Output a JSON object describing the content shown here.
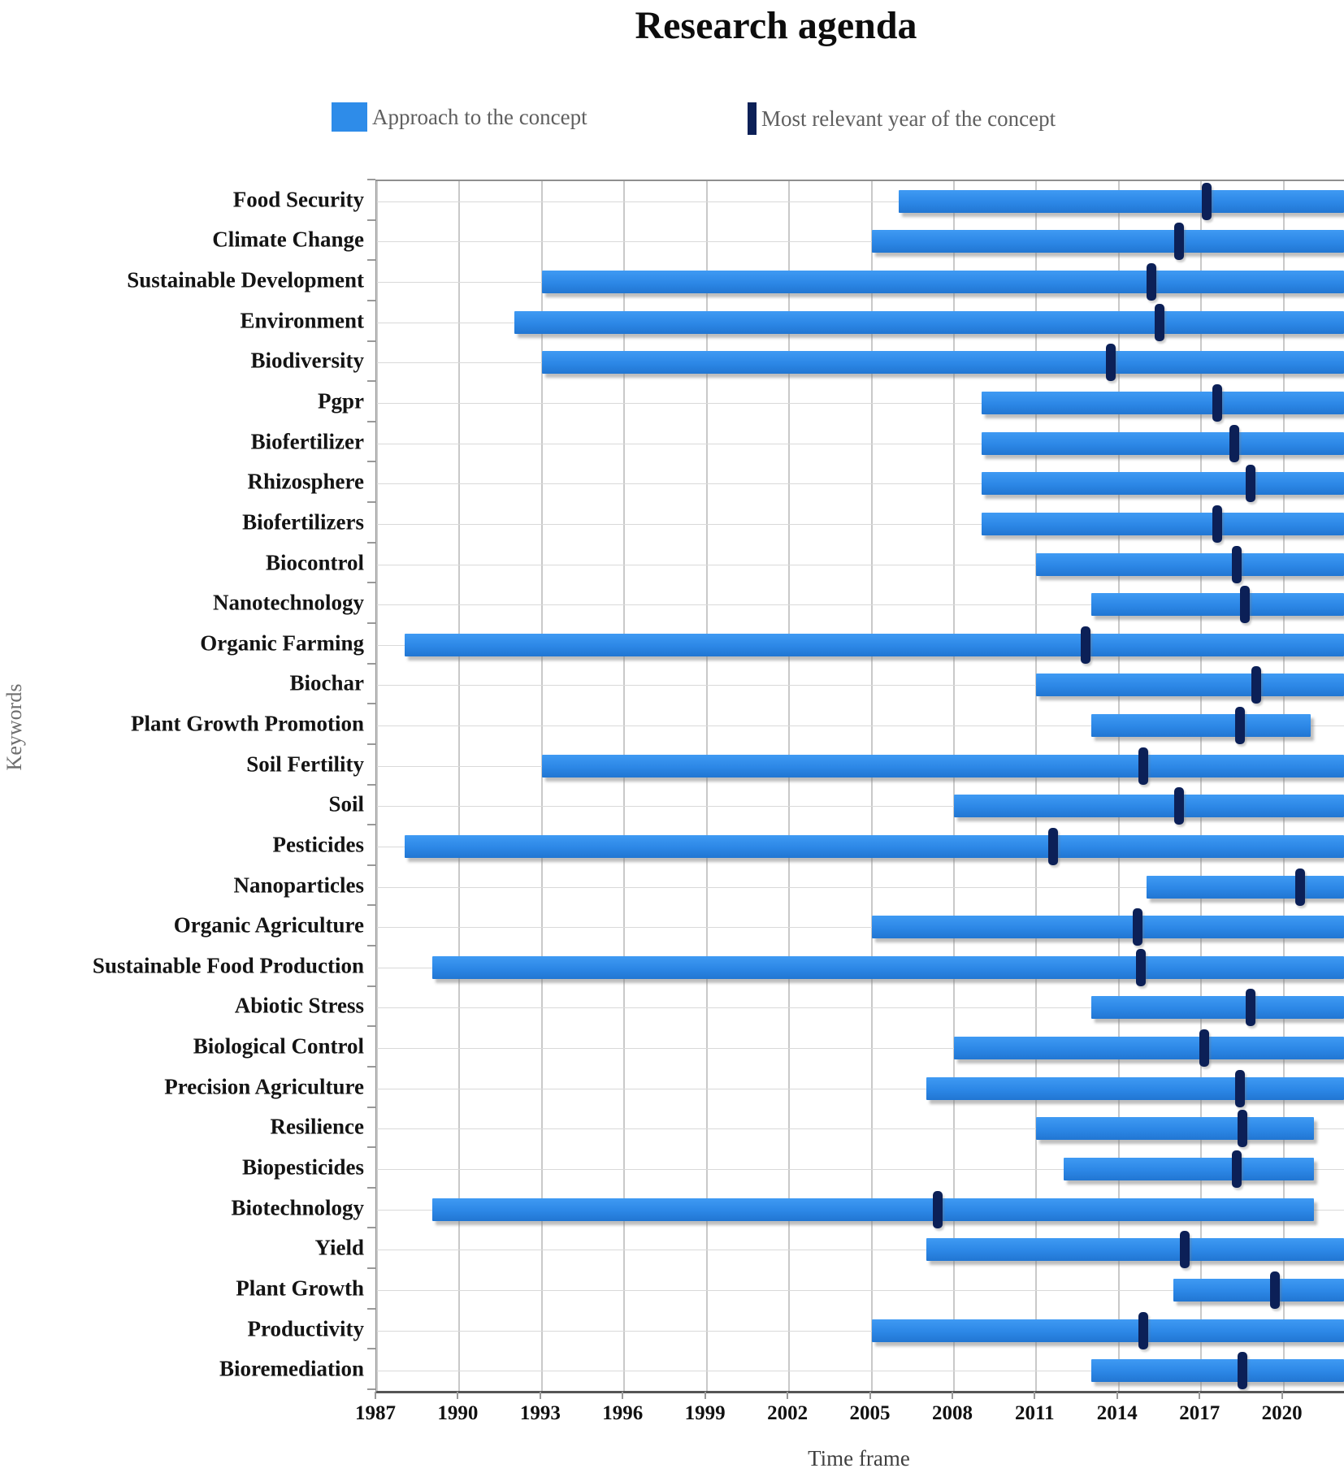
{
  "title": "Research agenda",
  "legend": {
    "approach_label": "Approach to the concept",
    "relevant_label": "Most relevant year of the concept"
  },
  "axes": {
    "y_title": "Keywords",
    "x_title": "Time frame"
  },
  "colors": {
    "bar": "#2e8ce9",
    "marker": "#0c2057",
    "legend_text": "#5f5f5f"
  },
  "chart_data": {
    "type": "bar",
    "orientation": "horizontal-gantt",
    "title": "Research agenda",
    "xlabel": "Time frame",
    "ylabel": "Keywords",
    "xlim": [
      1987,
      2022.2
    ],
    "x_ticks": [
      1987,
      1990,
      1993,
      1996,
      1999,
      2002,
      2005,
      2008,
      2011,
      2014,
      2017,
      2020
    ],
    "grid": true,
    "legend_position": "top",
    "series_meaning": {
      "bar": "Approach to the concept (time span)",
      "marker": "Most relevant year of the concept"
    },
    "rows": [
      {
        "label": "Food Security",
        "start": 2006,
        "end": 2022.2,
        "marker": 2017.2
      },
      {
        "label": "Climate Change",
        "start": 2005,
        "end": 2022.2,
        "marker": 2016.2
      },
      {
        "label": "Sustainable Development",
        "start": 1993,
        "end": 2022.2,
        "marker": 2015.2
      },
      {
        "label": "Environment",
        "start": 1992,
        "end": 2022.2,
        "marker": 2015.5
      },
      {
        "label": "Biodiversity",
        "start": 1993,
        "end": 2022.2,
        "marker": 2013.7
      },
      {
        "label": "Pgpr",
        "start": 2009,
        "end": 2022.2,
        "marker": 2017.6
      },
      {
        "label": "Biofertilizer",
        "start": 2009,
        "end": 2022.2,
        "marker": 2018.2
      },
      {
        "label": "Rhizosphere",
        "start": 2009,
        "end": 2022.2,
        "marker": 2018.8
      },
      {
        "label": "Biofertilizers",
        "start": 2009,
        "end": 2022.2,
        "marker": 2017.6
      },
      {
        "label": "Biocontrol",
        "start": 2011,
        "end": 2022.2,
        "marker": 2018.3
      },
      {
        "label": "Nanotechnology",
        "start": 2013,
        "end": 2022.2,
        "marker": 2018.6
      },
      {
        "label": "Organic Farming",
        "start": 1988,
        "end": 2022.2,
        "marker": 2012.8
      },
      {
        "label": "Biochar",
        "start": 2011,
        "end": 2022.2,
        "marker": 2019.0
      },
      {
        "label": "Plant Growth Promotion",
        "start": 2013,
        "end": 2021.0,
        "marker": 2018.4
      },
      {
        "label": "Soil Fertility",
        "start": 1993,
        "end": 2022.2,
        "marker": 2014.9
      },
      {
        "label": "Soil",
        "start": 2008,
        "end": 2022.2,
        "marker": 2016.2
      },
      {
        "label": "Pesticides",
        "start": 1988,
        "end": 2022.2,
        "marker": 2011.6
      },
      {
        "label": "Nanoparticles",
        "start": 2015,
        "end": 2022.2,
        "marker": 2020.6
      },
      {
        "label": "Organic Agriculture",
        "start": 2005,
        "end": 2022.2,
        "marker": 2014.7
      },
      {
        "label": "Sustainable Food Production",
        "start": 1989,
        "end": 2022.2,
        "marker": 2014.8
      },
      {
        "label": "Abiotic Stress",
        "start": 2013,
        "end": 2022.2,
        "marker": 2018.8
      },
      {
        "label": "Biological Control",
        "start": 2008,
        "end": 2022.2,
        "marker": 2017.1
      },
      {
        "label": "Precision Agriculture",
        "start": 2007,
        "end": 2022.2,
        "marker": 2018.4
      },
      {
        "label": "Resilience",
        "start": 2011,
        "end": 2021.1,
        "marker": 2018.5
      },
      {
        "label": "Biopesticides",
        "start": 2012,
        "end": 2021.1,
        "marker": 2018.3
      },
      {
        "label": "Biotechnology",
        "start": 1989,
        "end": 2021.1,
        "marker": 2007.4
      },
      {
        "label": "Yield",
        "start": 2007,
        "end": 2022.2,
        "marker": 2016.4
      },
      {
        "label": "Plant Growth",
        "start": 2016,
        "end": 2022.2,
        "marker": 2019.7
      },
      {
        "label": "Productivity",
        "start": 2005,
        "end": 2022.2,
        "marker": 2014.9
      },
      {
        "label": "Bioremediation",
        "start": 2013,
        "end": 2022.2,
        "marker": 2018.5
      }
    ]
  }
}
